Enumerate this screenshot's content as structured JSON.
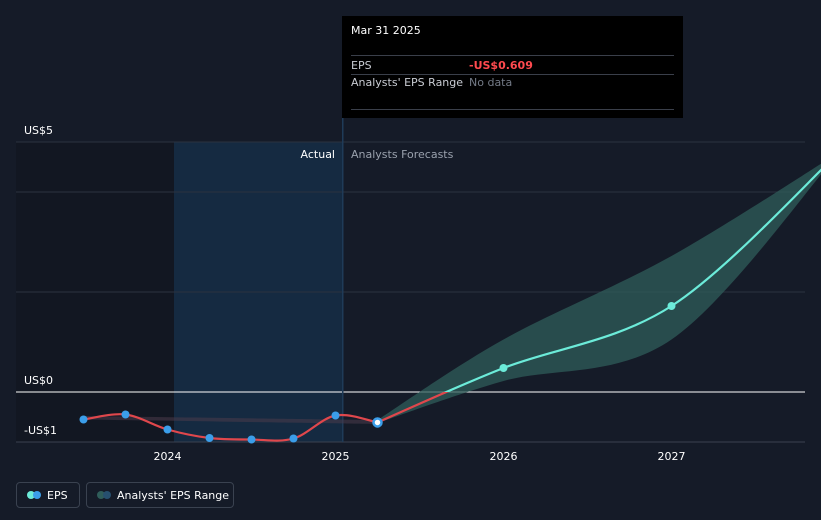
{
  "tooltip": {
    "date": "Mar 31 2025",
    "eps_label": "EPS",
    "eps_value": "-US$0.609",
    "range_label": "Analysts' EPS Range",
    "range_value": "No data"
  },
  "legend": {
    "eps_label": "EPS",
    "range_label": "Analysts' EPS Range"
  },
  "colors": {
    "actual_line": "#e0474c",
    "forecast_line": "#6cebd9",
    "actual_point": "#3b9eea",
    "negative_text": "#ff4a4f",
    "muted_text": "#737a86"
  },
  "chart_data": {
    "type": "line",
    "y_tick_labels": [
      "US$5",
      "US$0",
      "-US$1"
    ],
    "x_tick_labels": [
      "2024",
      "2025",
      "2026",
      "2027"
    ],
    "region_labels": {
      "actual": "Actual",
      "forecast": "Analysts Forecasts"
    },
    "ylim": [
      -1,
      5
    ],
    "grid": true,
    "legend_position": "bottom-left",
    "series": [
      {
        "name": "EPS",
        "kind": "actual",
        "points": [
          {
            "x": 2023.5,
            "y": -0.55
          },
          {
            "x": 2023.75,
            "y": -0.45
          },
          {
            "x": 2024.0,
            "y": -0.75
          },
          {
            "x": 2024.25,
            "y": -0.92
          },
          {
            "x": 2024.5,
            "y": -0.95
          },
          {
            "x": 2024.75,
            "y": -0.93
          },
          {
            "x": 2025.0,
            "y": -0.47
          },
          {
            "x": 2025.25,
            "y": -0.609
          }
        ]
      },
      {
        "name": "EPS",
        "kind": "forecast",
        "points": [
          {
            "x": 2025.25,
            "y": -0.609
          },
          {
            "x": 2026.0,
            "y": 0.48
          },
          {
            "x": 2027.0,
            "y": 1.72
          },
          {
            "x": 2028.0,
            "y": 4.8
          }
        ]
      },
      {
        "name": "Analysts' EPS Range",
        "kind": "range",
        "points": [
          {
            "x": 2025.25,
            "low": -0.62,
            "high": -0.56
          },
          {
            "x": 2026.0,
            "low": 0.22,
            "high": 1.05
          },
          {
            "x": 2027.0,
            "low": 1.05,
            "high": 2.72
          },
          {
            "x": 2028.0,
            "low": 4.8,
            "high": 4.8
          }
        ]
      },
      {
        "name": "Analysts' EPS Range",
        "kind": "past_range",
        "points": [
          {
            "x": 2023.5,
            "low": -0.55,
            "high": -0.48
          },
          {
            "x": 2025.25,
            "low": -0.64,
            "high": -0.56
          }
        ]
      }
    ]
  }
}
